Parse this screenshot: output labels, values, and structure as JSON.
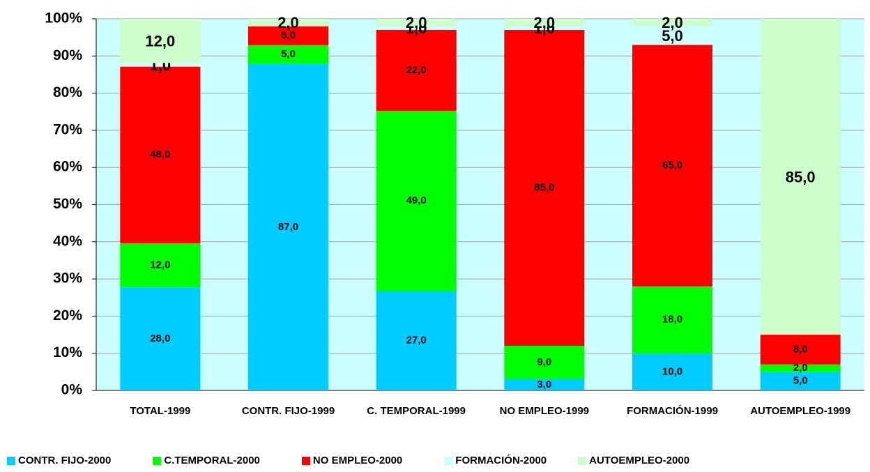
{
  "chart_data": {
    "type": "bar",
    "stack": "percent",
    "categories": [
      "TOTAL-1999",
      "CONTR. FIJO-1999",
      "C. TEMPORAL-1999",
      "NO EMPLEO-1999",
      "FORMACIÓN-1999",
      "AUTOEMPLEO-1999"
    ],
    "series": [
      {
        "name": "CONTR. FIJO-2000",
        "color": "#00ccff",
        "values": [
          28,
          87,
          27,
          3,
          10,
          5
        ],
        "value_labels": [
          "28,0",
          "87,0",
          "27,0",
          "3,0",
          "10,0",
          "5,0"
        ]
      },
      {
        "name": "C.TEMPORAL-2000",
        "color": "#00ff00",
        "values": [
          12,
          5,
          49,
          9,
          18,
          2
        ],
        "value_labels": [
          "12,0",
          "5,0",
          "49,0",
          "9,0",
          "18,0",
          "2,0"
        ]
      },
      {
        "name": "NO EMPLEO-2000",
        "color": "#ff0000",
        "values": [
          48,
          5,
          22,
          85,
          65,
          8
        ],
        "value_labels": [
          "48,0",
          "5,0",
          "22,0",
          "85,0",
          "65,0",
          "8,0"
        ]
      },
      {
        "name": "FORMACIÓN-2000",
        "color": "#ccffff",
        "values": [
          1,
          null,
          1,
          1,
          5,
          null
        ],
        "value_labels": [
          "1,0",
          null,
          "1,0",
          "1,0",
          "5,0",
          null
        ]
      },
      {
        "name": "AUTOEMPLEO-2000",
        "color": "#ccffcc",
        "values": [
          12,
          2,
          2,
          2,
          2,
          85
        ],
        "value_labels": [
          "12,0",
          "2,0",
          "2,0",
          "2,0",
          "2,0",
          "85,0"
        ]
      }
    ],
    "ylim": [
      0,
      100
    ],
    "yticks": [
      {
        "value": 0,
        "label": "0%"
      },
      {
        "value": 10,
        "label": "10%"
      },
      {
        "value": 20,
        "label": "20%"
      },
      {
        "value": 30,
        "label": "30%"
      },
      {
        "value": 40,
        "label": "40%"
      },
      {
        "value": 50,
        "label": "50%"
      },
      {
        "value": 60,
        "label": "60%"
      },
      {
        "value": 70,
        "label": "70%"
      },
      {
        "value": 80,
        "label": "80%"
      },
      {
        "value": 90,
        "label": "90%"
      },
      {
        "value": 100,
        "label": "100%"
      }
    ],
    "grid": true
  }
}
